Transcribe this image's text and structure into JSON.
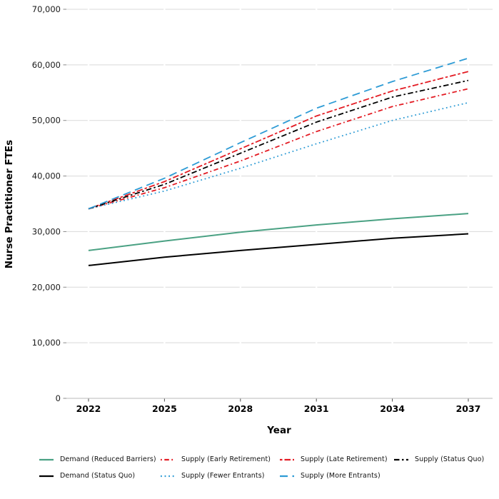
{
  "chart_data": {
    "type": "line",
    "title": "",
    "xlabel": "Year",
    "ylabel": "Nurse Practitioner FTEs",
    "xlim": [
      2022,
      2037
    ],
    "ylim": [
      0,
      70000
    ],
    "x_tick_values": [
      2022,
      2025,
      2028,
      2031,
      2034,
      2037
    ],
    "x_tick_labels": [
      "2022",
      "2025",
      "2028",
      "2031",
      "2034",
      "2037"
    ],
    "y_tick_values": [
      0,
      10000,
      20000,
      30000,
      40000,
      50000,
      60000,
      70000
    ],
    "y_tick_labels": [
      "0",
      "10,000",
      "20,000",
      "30,000",
      "40,000",
      "50,000",
      "60,000",
      "70,000"
    ],
    "grid": "horizontal-major-only",
    "legend_position": "bottom",
    "x": [
      2022,
      2025,
      2028,
      2031,
      2034,
      2037
    ],
    "series": [
      {
        "name": "Demand (Reduced Barriers)",
        "color": "#4aa183",
        "linetype": "solid",
        "width": 2,
        "values": [
          26600,
          28300,
          29900,
          31200,
          32300,
          33250
        ]
      },
      {
        "name": "Demand (Status Quo)",
        "color": "#000000",
        "linetype": "solid",
        "width": 2,
        "values": [
          23900,
          25400,
          26600,
          27700,
          28800,
          29600
        ]
      },
      {
        "name": "Supply (Early Retirement)",
        "color": "#e31b23",
        "linetype": "dotdash",
        "width": 1.8,
        "values": [
          34100,
          37900,
          42700,
          48000,
          52500,
          55700
        ]
      },
      {
        "name": "Supply (Fewer Entrants)",
        "color": "#2d9bd5",
        "linetype": "dotted",
        "width": 1.8,
        "values": [
          34100,
          37300,
          41400,
          45800,
          50000,
          53200
        ]
      },
      {
        "name": "Supply (Late Retirement)",
        "color": "#e31b23",
        "linetype": "twodash",
        "width": 1.8,
        "values": [
          34100,
          39000,
          44900,
          50800,
          55300,
          58800
        ]
      },
      {
        "name": "Supply (Status Quo)",
        "color": "#000000",
        "linetype": "longdash-dot",
        "width": 1.8,
        "values": [
          34100,
          38500,
          44100,
          49700,
          54200,
          57200
        ]
      },
      {
        "name": "Supply (More Entrants)",
        "color": "#2d9bd5",
        "linetype": "longdash",
        "width": 1.8,
        "values": [
          34100,
          39600,
          46000,
          52200,
          57000,
          61200
        ]
      }
    ],
    "legend_rows": [
      [
        "Demand (Reduced Barriers)",
        "Supply (Early Retirement)",
        "Supply (Late Retirement)",
        "Supply (Status Quo)"
      ],
      [
        "Demand (Status Quo)",
        "Supply (Fewer Entrants)",
        "Supply (More Entrants)"
      ]
    ]
  },
  "style": {
    "gridline_color": "#d9d9d9",
    "axis_line_color": "#c6c6c6",
    "x_tick_color": "#4d4d4d",
    "y_tick_color": "#8a8a8a",
    "x_tick_label_color": "#000000",
    "y_tick_label_color": "#1a1a1a",
    "title_color": "#000000"
  }
}
